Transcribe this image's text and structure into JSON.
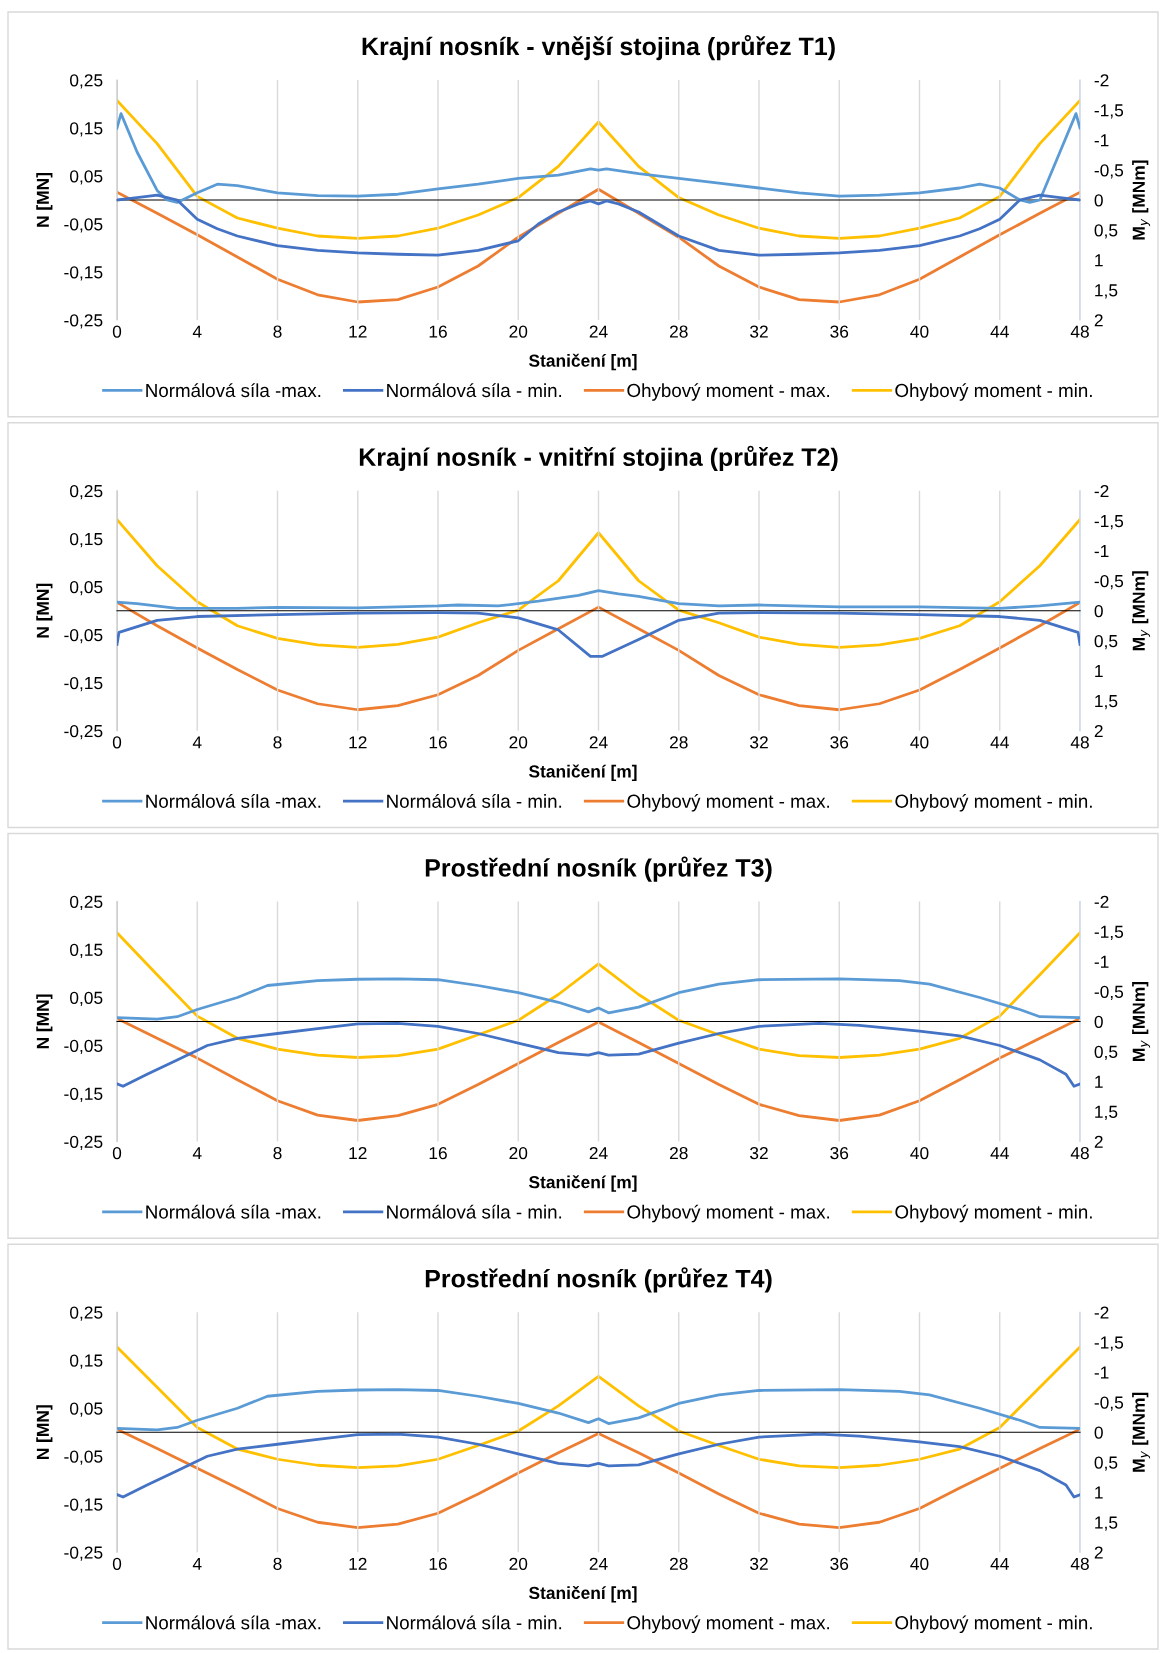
{
  "chart_data": [
    {
      "type": "line",
      "title": "Krajní nosník - vnější stojina (průřez T1)",
      "xlabel": "Staničení [m]",
      "ylabel": "N [MN]",
      "y2label": "M$_{y}$ [MNm]",
      "xlim": [
        0,
        48
      ],
      "xticks": [
        0,
        4,
        8,
        12,
        16,
        20,
        24,
        28,
        32,
        36,
        40,
        44,
        48
      ],
      "ylim": [
        -0.25,
        0.25
      ],
      "yticks": [
        {
          "value": -0.25,
          "label": "-0,25"
        },
        {
          "value": -0.15,
          "label": "-0,15"
        },
        {
          "value": -0.05,
          "label": "-0,05"
        },
        {
          "value": 0.05,
          "label": "0,05"
        },
        {
          "value": 0.15,
          "label": "0,15"
        },
        {
          "value": 0.25,
          "label": "0,25"
        }
      ],
      "y2lim": [
        2,
        -2
      ],
      "y2ticks": [
        -2,
        {
          "value": -1.5,
          "label": "-1,5"
        },
        -1,
        {
          "value": -0.5,
          "label": "-0,5"
        },
        0,
        {
          "value": 0.5,
          "label": "0,5"
        },
        1,
        {
          "value": 1.5,
          "label": "1,5"
        },
        2
      ],
      "grid": "x",
      "legend": "bottom",
      "series": [
        {
          "name": "Normálová síla -max.",
          "color": "#5b9bd5",
          "x": [
            0,
            0.2,
            1,
            2,
            2.5,
            3,
            4,
            5,
            6,
            8,
            10,
            12,
            14,
            16,
            18,
            20,
            22,
            23.6,
            24,
            24.4,
            26,
            28,
            30,
            32,
            34,
            36,
            38,
            40,
            42,
            43,
            44,
            45,
            45.5,
            46,
            47,
            47.8,
            48
          ],
          "values": [
            0.15,
            0.18,
            0.1,
            0.02,
            0.0,
            -0.005,
            0.015,
            0.033,
            0.03,
            0.015,
            0.009,
            0.008,
            0.012,
            0.023,
            0.033,
            0.045,
            0.052,
            0.065,
            0.062,
            0.065,
            0.055,
            0.045,
            0.035,
            0.025,
            0.015,
            0.008,
            0.01,
            0.015,
            0.025,
            0.033,
            0.025,
            0.0,
            -0.005,
            0.0,
            0.1,
            0.18,
            0.15
          ]
        },
        {
          "name": "Normálová síla - min.",
          "color": "#4472c4",
          "x": [
            0,
            1,
            2,
            3,
            4,
            5,
            6,
            8,
            10,
            12,
            14,
            16,
            18,
            20,
            21,
            22,
            23,
            23.6,
            24,
            24.4,
            25,
            26,
            27,
            28,
            30,
            32,
            34,
            36,
            38,
            40,
            42,
            43,
            44,
            45,
            46,
            47,
            48
          ],
          "values": [
            0.0,
            0.005,
            0.01,
            0.0,
            -0.04,
            -0.06,
            -0.075,
            -0.095,
            -0.105,
            -0.11,
            -0.113,
            -0.115,
            -0.105,
            -0.085,
            -0.05,
            -0.025,
            -0.008,
            -0.002,
            -0.008,
            -0.002,
            -0.008,
            -0.025,
            -0.05,
            -0.075,
            -0.105,
            -0.115,
            -0.113,
            -0.11,
            -0.105,
            -0.095,
            -0.075,
            -0.06,
            -0.04,
            0.0,
            0.01,
            0.005,
            0.0
          ]
        },
        {
          "name": "Ohybový moment - max.",
          "color": "#ed7d31",
          "axis": "y2",
          "x": [
            0,
            2,
            4,
            6,
            8,
            10,
            12,
            14,
            16,
            18,
            20,
            22,
            24,
            26,
            28,
            30,
            32,
            34,
            36,
            38,
            40,
            42,
            44,
            46,
            48
          ],
          "values": [
            -0.13,
            0.22,
            0.58,
            0.95,
            1.32,
            1.58,
            1.7,
            1.66,
            1.45,
            1.1,
            0.62,
            0.22,
            -0.18,
            0.22,
            0.62,
            1.1,
            1.45,
            1.66,
            1.7,
            1.58,
            1.32,
            0.95,
            0.58,
            0.22,
            -0.13
          ]
        },
        {
          "name": "Ohybový moment - min.",
          "color": "#ffc000",
          "axis": "y2",
          "x": [
            0,
            2,
            4,
            6,
            8,
            10,
            12,
            14,
            16,
            18,
            20,
            22,
            24,
            26,
            28,
            30,
            32,
            34,
            36,
            38,
            40,
            42,
            44,
            46,
            48
          ],
          "values": [
            -1.66,
            -0.94,
            -0.06,
            0.3,
            0.47,
            0.6,
            0.64,
            0.6,
            0.47,
            0.25,
            -0.04,
            -0.56,
            -1.3,
            -0.56,
            -0.04,
            0.25,
            0.47,
            0.6,
            0.64,
            0.6,
            0.47,
            0.3,
            -0.06,
            -0.94,
            -1.66
          ]
        }
      ]
    },
    {
      "type": "line",
      "title": "Krajní nosník - vnitřní stojina (průřez T2)",
      "xlabel": "Staničení [m]",
      "ylabel": "N [MN]",
      "y2label": "M$_{y}$ [MNm]",
      "xlim": [
        0,
        48
      ],
      "xticks": [
        0,
        4,
        8,
        12,
        16,
        20,
        24,
        28,
        32,
        36,
        40,
        44,
        48
      ],
      "ylim": [
        -0.25,
        0.25
      ],
      "yticks": [
        {
          "value": -0.25,
          "label": "-0,25"
        },
        {
          "value": -0.15,
          "label": "-0,15"
        },
        {
          "value": -0.05,
          "label": "-0,05"
        },
        {
          "value": 0.05,
          "label": "0,05"
        },
        {
          "value": 0.15,
          "label": "0,15"
        },
        {
          "value": 0.25,
          "label": "0,25"
        }
      ],
      "y2lim": [
        2,
        -2
      ],
      "y2ticks": [
        -2,
        {
          "value": -1.5,
          "label": "-1,5"
        },
        -1,
        {
          "value": -0.5,
          "label": "-0,5"
        },
        0,
        {
          "value": 0.5,
          "label": "0,5"
        },
        1,
        {
          "value": 1.5,
          "label": "1,5"
        },
        2
      ],
      "grid": "x",
      "legend": "bottom",
      "series": [
        {
          "name": "Normálová síla -max.",
          "color": "#5b9bd5",
          "x": [
            0,
            1,
            3,
            6,
            8,
            12,
            16,
            17,
            19,
            21,
            23,
            24,
            25,
            26,
            28,
            30,
            32,
            36,
            40,
            44,
            46,
            48
          ],
          "values": [
            0.018,
            0.015,
            0.005,
            0.005,
            0.007,
            0.006,
            0.01,
            0.012,
            0.01,
            0.02,
            0.032,
            0.042,
            0.035,
            0.03,
            0.015,
            0.01,
            0.012,
            0.008,
            0.008,
            0.005,
            0.01,
            0.018
          ]
        },
        {
          "name": "Normálová síla - min.",
          "color": "#4472c4",
          "x": [
            0,
            0.1,
            2,
            4,
            8,
            12,
            16,
            18,
            20,
            22,
            23.6,
            24.2,
            26,
            28,
            30,
            32,
            36,
            40,
            44,
            46,
            47.9,
            48
          ],
          "values": [
            -0.07,
            -0.045,
            -0.02,
            -0.012,
            -0.008,
            -0.005,
            -0.004,
            -0.005,
            -0.015,
            -0.04,
            -0.095,
            -0.095,
            -0.06,
            -0.02,
            -0.005,
            -0.004,
            -0.005,
            -0.008,
            -0.012,
            -0.02,
            -0.045,
            -0.07
          ]
        },
        {
          "name": "Ohybový moment - max.",
          "color": "#ed7d31",
          "axis": "y2",
          "x": [
            0,
            2,
            4,
            6,
            8,
            10,
            12,
            14,
            16,
            18,
            20,
            22,
            24,
            26,
            28,
            30,
            32,
            34,
            36,
            38,
            40,
            42,
            44,
            46,
            48
          ],
          "values": [
            -0.14,
            0.25,
            0.62,
            0.98,
            1.32,
            1.55,
            1.65,
            1.58,
            1.4,
            1.08,
            0.66,
            0.3,
            -0.06,
            0.3,
            0.66,
            1.08,
            1.4,
            1.58,
            1.65,
            1.55,
            1.32,
            0.98,
            0.62,
            0.25,
            -0.14
          ]
        },
        {
          "name": "Ohybový moment - min.",
          "color": "#ffc000",
          "axis": "y2",
          "x": [
            0,
            2,
            4,
            6,
            8,
            10,
            12,
            14,
            16,
            18,
            20,
            22,
            24,
            26,
            28,
            30,
            32,
            34,
            36,
            38,
            40,
            42,
            44,
            46,
            48
          ],
          "values": [
            -1.52,
            -0.75,
            -0.15,
            0.25,
            0.46,
            0.57,
            0.61,
            0.56,
            0.44,
            0.2,
            -0.01,
            -0.5,
            -1.3,
            -0.5,
            -0.01,
            0.2,
            0.44,
            0.56,
            0.61,
            0.57,
            0.46,
            0.25,
            -0.15,
            -0.75,
            -1.52
          ]
        }
      ]
    },
    {
      "type": "line",
      "title": "Prostřední nosník (průřez T3)",
      "xlabel": "Staničení [m]",
      "ylabel": "N [MN]",
      "y2label": "M$_{y}$ [MNm]",
      "xlim": [
        0,
        48
      ],
      "xticks": [
        0,
        4,
        8,
        12,
        16,
        20,
        24,
        28,
        32,
        36,
        40,
        44,
        48
      ],
      "ylim": [
        -0.25,
        0.25
      ],
      "yticks": [
        {
          "value": -0.25,
          "label": "-0,25"
        },
        {
          "value": -0.15,
          "label": "-0,15"
        },
        {
          "value": -0.05,
          "label": "-0,05"
        },
        {
          "value": 0.05,
          "label": "0,05"
        },
        {
          "value": 0.15,
          "label": "0,15"
        },
        {
          "value": 0.25,
          "label": "0,25"
        }
      ],
      "y2lim": [
        2,
        -2
      ],
      "y2ticks": [
        -2,
        {
          "value": -1.5,
          "label": "-1,5"
        },
        -1,
        {
          "value": -0.5,
          "label": "-0,5"
        },
        0,
        {
          "value": 0.5,
          "label": "0,5"
        },
        1,
        {
          "value": 1.5,
          "label": "1,5"
        },
        2
      ],
      "grid": "x",
      "legend": "bottom",
      "series": [
        {
          "name": "Normálová síla -max.",
          "color": "#5b9bd5",
          "x": [
            0,
            2,
            3,
            4,
            6,
            7.5,
            10,
            12,
            14,
            16,
            18,
            20,
            22,
            23.5,
            24,
            24.5,
            26,
            28,
            30,
            32,
            36,
            39,
            40.5,
            43,
            45,
            46,
            48
          ],
          "values": [
            0.008,
            0.005,
            0.01,
            0.025,
            0.05,
            0.075,
            0.085,
            0.088,
            0.089,
            0.087,
            0.075,
            0.06,
            0.04,
            0.02,
            0.028,
            0.018,
            0.03,
            0.06,
            0.078,
            0.087,
            0.089,
            0.085,
            0.078,
            0.05,
            0.025,
            0.01,
            0.008
          ]
        },
        {
          "name": "Normálová síla - min.",
          "color": "#4472c4",
          "x": [
            0,
            0.3,
            1.5,
            3,
            4.5,
            6,
            8,
            10,
            12,
            14,
            16,
            18,
            20,
            22,
            23.5,
            24,
            24.5,
            26,
            28,
            30,
            32,
            35,
            37,
            40,
            42,
            44,
            46,
            47.3,
            47.7,
            48
          ],
          "values": [
            -0.13,
            -0.135,
            -0.11,
            -0.08,
            -0.05,
            -0.035,
            -0.025,
            -0.015,
            -0.005,
            -0.004,
            -0.01,
            -0.025,
            -0.045,
            -0.065,
            -0.07,
            -0.065,
            -0.07,
            -0.068,
            -0.045,
            -0.025,
            -0.01,
            -0.004,
            -0.008,
            -0.02,
            -0.03,
            -0.05,
            -0.08,
            -0.11,
            -0.135,
            -0.13
          ]
        },
        {
          "name": "Ohybový moment - max.",
          "color": "#ed7d31",
          "axis": "y2",
          "x": [
            0,
            2,
            4,
            6,
            8,
            10,
            12,
            14,
            16,
            18,
            20,
            22,
            24,
            26,
            28,
            30,
            32,
            34,
            36,
            38,
            40,
            42,
            44,
            46,
            48
          ],
          "values": [
            -0.05,
            0.28,
            0.61,
            0.97,
            1.32,
            1.56,
            1.65,
            1.57,
            1.38,
            1.05,
            0.7,
            0.35,
            0.01,
            0.35,
            0.7,
            1.05,
            1.38,
            1.57,
            1.65,
            1.56,
            1.32,
            0.97,
            0.61,
            0.28,
            -0.05
          ]
        },
        {
          "name": "Ohybový moment - min.",
          "color": "#ffc000",
          "axis": "y2",
          "x": [
            0,
            2,
            4,
            6,
            8,
            10,
            12,
            14,
            16,
            18,
            20,
            22,
            24,
            26,
            28,
            30,
            32,
            34,
            36,
            38,
            40,
            42,
            44,
            46,
            48
          ],
          "values": [
            -1.48,
            -0.78,
            -0.09,
            0.28,
            0.46,
            0.56,
            0.6,
            0.57,
            0.46,
            0.22,
            -0.02,
            -0.45,
            -0.96,
            -0.45,
            -0.02,
            0.22,
            0.46,
            0.57,
            0.6,
            0.56,
            0.46,
            0.28,
            -0.09,
            -0.78,
            -1.48
          ]
        }
      ]
    },
    {
      "type": "line",
      "title": "Prostřední nosník (průřez T4)",
      "xlabel": "Staničení [m]",
      "ylabel": "N [MN]",
      "y2label": "M$_{y}$ [MNm]",
      "xlim": [
        0,
        48
      ],
      "xticks": [
        0,
        4,
        8,
        12,
        16,
        20,
        24,
        28,
        32,
        36,
        40,
        44,
        48
      ],
      "ylim": [
        -0.25,
        0.25
      ],
      "yticks": [
        {
          "value": -0.25,
          "label": "-0,25"
        },
        {
          "value": -0.15,
          "label": "-0,15"
        },
        {
          "value": -0.05,
          "label": "-0,05"
        },
        {
          "value": 0.05,
          "label": "0,05"
        },
        {
          "value": 0.15,
          "label": "0,15"
        },
        {
          "value": 0.25,
          "label": "0,25"
        }
      ],
      "y2lim": [
        2,
        -2
      ],
      "y2ticks": [
        -2,
        {
          "value": -1.5,
          "label": "-1,5"
        },
        -1,
        {
          "value": -0.5,
          "label": "-0,5"
        },
        0,
        {
          "value": 0.5,
          "label": "0,5"
        },
        1,
        {
          "value": 1.5,
          "label": "1,5"
        },
        2
      ],
      "grid": "x",
      "legend": "bottom",
      "series": [
        {
          "name": "Normálová síla -max.",
          "color": "#5b9bd5",
          "x": [
            0,
            2,
            3,
            4,
            6,
            7.5,
            10,
            12,
            14,
            16,
            18,
            20,
            22,
            23.5,
            24,
            24.5,
            26,
            28,
            30,
            32,
            36,
            39,
            40.5,
            43,
            45,
            46,
            48
          ],
          "values": [
            0.008,
            0.005,
            0.01,
            0.025,
            0.05,
            0.075,
            0.085,
            0.088,
            0.089,
            0.087,
            0.075,
            0.06,
            0.04,
            0.02,
            0.028,
            0.018,
            0.03,
            0.06,
            0.078,
            0.087,
            0.089,
            0.085,
            0.078,
            0.05,
            0.025,
            0.01,
            0.008
          ]
        },
        {
          "name": "Normálová síla - min.",
          "color": "#4472c4",
          "x": [
            0,
            0.3,
            1.5,
            3,
            4.5,
            6,
            8,
            10,
            12,
            14,
            16,
            18,
            20,
            22,
            23.5,
            24,
            24.5,
            26,
            28,
            30,
            32,
            35,
            37,
            40,
            42,
            44,
            46,
            47.3,
            47.7,
            48
          ],
          "values": [
            -0.13,
            -0.135,
            -0.11,
            -0.08,
            -0.05,
            -0.035,
            -0.025,
            -0.015,
            -0.005,
            -0.004,
            -0.01,
            -0.025,
            -0.045,
            -0.065,
            -0.07,
            -0.065,
            -0.07,
            -0.068,
            -0.045,
            -0.025,
            -0.01,
            -0.004,
            -0.008,
            -0.02,
            -0.03,
            -0.05,
            -0.08,
            -0.11,
            -0.135,
            -0.13
          ]
        },
        {
          "name": "Ohybový moment - max.",
          "color": "#ed7d31",
          "axis": "y2",
          "x": [
            0,
            2,
            4,
            6,
            8,
            10,
            12,
            14,
            16,
            18,
            20,
            22,
            24,
            26,
            28,
            30,
            32,
            34,
            36,
            38,
            40,
            42,
            44,
            46,
            48
          ],
          "values": [
            -0.05,
            0.27,
            0.6,
            0.93,
            1.27,
            1.5,
            1.59,
            1.53,
            1.35,
            1.03,
            0.68,
            0.34,
            0.02,
            0.34,
            0.68,
            1.03,
            1.35,
            1.53,
            1.59,
            1.5,
            1.27,
            0.93,
            0.6,
            0.27,
            -0.05
          ]
        },
        {
          "name": "Ohybový moment - min.",
          "color": "#ffc000",
          "axis": "y2",
          "x": [
            0,
            2,
            4,
            6,
            8,
            10,
            12,
            14,
            16,
            18,
            20,
            22,
            24,
            26,
            28,
            30,
            32,
            34,
            36,
            38,
            40,
            42,
            44,
            46,
            48
          ],
          "values": [
            -1.42,
            -0.75,
            -0.08,
            0.28,
            0.45,
            0.55,
            0.59,
            0.56,
            0.45,
            0.22,
            -0.02,
            -0.44,
            -0.93,
            -0.44,
            -0.02,
            0.22,
            0.45,
            0.56,
            0.59,
            0.55,
            0.45,
            0.28,
            -0.08,
            -0.75,
            -1.42
          ]
        }
      ]
    }
  ]
}
